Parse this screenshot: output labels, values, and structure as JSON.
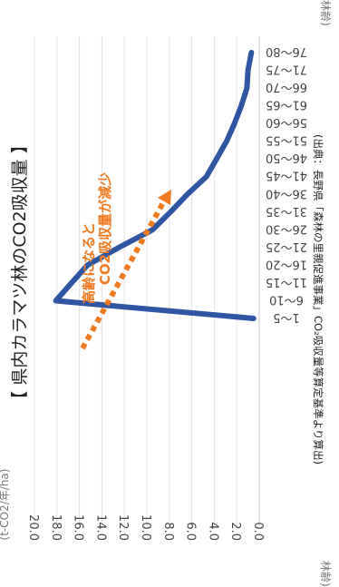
{
  "chart_data": {
    "type": "line",
    "title": "【 県内カラマツ林のCO2吸収量 】",
    "yunit": "(t-CO2/年/ha)",
    "xunit": "(林齢)",
    "xunit_cut": "林齢)",
    "source": "(出典：長野県「森林の里親促進事業」CO₂吸収量等算定基準より算出)",
    "annotation_line1": "高齢になると",
    "annotation_line2": "CO2吸収量が減少",
    "annotation_color": "#f07a22",
    "line_color": "#2e56a3",
    "grid": true,
    "ylim": [
      0,
      20
    ],
    "yticks": [
      "0.0",
      "2.0",
      "4.0",
      "6.0",
      "8.0",
      "10.0",
      "12.0",
      "14.0",
      "16.0",
      "18.0",
      "20.0"
    ],
    "categories": [
      "1～5",
      "6～10",
      "11～15",
      "16～20",
      "21～25",
      "26～30",
      "31～35",
      "36～40",
      "41～45",
      "46～50",
      "51～55",
      "56～60",
      "61～65",
      "66～70",
      "71～75",
      "76～80"
    ],
    "values": [
      0.5,
      18.1,
      16.7,
      15.3,
      12.5,
      9.5,
      7.9,
      6.4,
      4.7,
      3.8,
      2.9,
      2.2,
      1.6,
      1.1,
      1.0,
      0.7
    ]
  }
}
